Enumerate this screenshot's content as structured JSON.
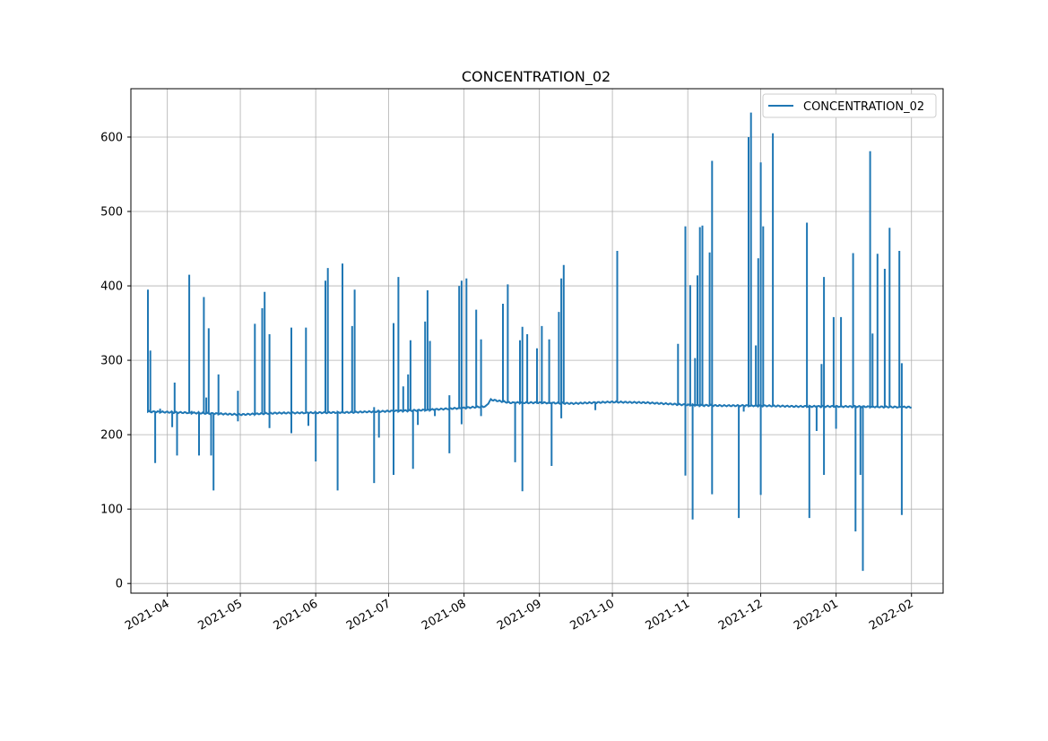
{
  "chart_data": {
    "type": "line",
    "title": "CONCENTRATION_02",
    "xlabel": "",
    "ylabel": "",
    "x_axis_type": "date",
    "xlim": [
      "2021-03-17",
      "2022-02-14"
    ],
    "ylim": [
      -13,
      665
    ],
    "x_ticks": [
      "2021-04",
      "2021-05",
      "2021-06",
      "2021-07",
      "2021-08",
      "2021-09",
      "2021-10",
      "2021-11",
      "2021-12",
      "2022-01",
      "2022-02"
    ],
    "y_ticks": [
      0,
      100,
      200,
      300,
      400,
      500,
      600
    ],
    "grid": true,
    "legend": {
      "position": "top-right",
      "entries": [
        "CONCENTRATION_02"
      ]
    },
    "colors": {
      "series": "#1f77b4"
    },
    "series": [
      {
        "name": "CONCENTRATION_02",
        "baseline": [
          [
            "2021-03-24",
            231
          ],
          [
            "2021-04-15",
            229
          ],
          [
            "2021-05-01",
            227
          ],
          [
            "2021-05-15",
            229
          ],
          [
            "2021-06-15",
            230
          ],
          [
            "2021-07-15",
            233
          ],
          [
            "2021-08-01",
            236
          ],
          [
            "2021-08-10",
            238
          ],
          [
            "2021-08-12",
            247
          ],
          [
            "2021-08-20",
            243
          ],
          [
            "2021-09-01",
            243
          ],
          [
            "2021-09-15",
            242
          ],
          [
            "2021-10-01",
            244
          ],
          [
            "2021-10-15",
            243
          ],
          [
            "2021-11-01",
            240
          ],
          [
            "2021-11-15",
            239
          ],
          [
            "2021-12-01",
            239
          ],
          [
            "2021-12-15",
            238
          ],
          [
            "2022-01-01",
            238
          ],
          [
            "2022-02-01",
            237
          ]
        ],
        "spikes": [
          [
            "2021-03-24",
            395
          ],
          [
            "2021-03-25",
            313
          ],
          [
            "2021-03-27",
            162
          ],
          [
            "2021-03-29",
            235
          ],
          [
            "2021-04-03",
            210
          ],
          [
            "2021-04-04",
            270
          ],
          [
            "2021-04-05",
            172
          ],
          [
            "2021-04-10",
            415
          ],
          [
            "2021-04-11",
            232
          ],
          [
            "2021-04-14",
            172
          ],
          [
            "2021-04-16",
            385
          ],
          [
            "2021-04-17",
            250
          ],
          [
            "2021-04-18",
            343
          ],
          [
            "2021-04-19",
            172
          ],
          [
            "2021-04-20",
            125
          ],
          [
            "2021-04-22",
            281
          ],
          [
            "2021-04-30",
            259
          ],
          [
            "2021-04-30",
            218
          ],
          [
            "2021-05-07",
            349
          ],
          [
            "2021-05-10",
            370
          ],
          [
            "2021-05-11",
            392
          ],
          [
            "2021-05-13",
            335
          ],
          [
            "2021-05-13",
            209
          ],
          [
            "2021-05-22",
            344
          ],
          [
            "2021-05-22",
            202
          ],
          [
            "2021-05-28",
            344
          ],
          [
            "2021-05-29",
            212
          ],
          [
            "2021-06-01",
            164
          ],
          [
            "2021-06-05",
            407
          ],
          [
            "2021-06-06",
            424
          ],
          [
            "2021-06-10",
            125
          ],
          [
            "2021-06-12",
            430
          ],
          [
            "2021-06-16",
            346
          ],
          [
            "2021-06-17",
            395
          ],
          [
            "2021-06-25",
            135
          ],
          [
            "2021-06-25",
            237
          ],
          [
            "2021-06-27",
            196
          ],
          [
            "2021-07-03",
            350
          ],
          [
            "2021-07-03",
            146
          ],
          [
            "2021-07-05",
            412
          ],
          [
            "2021-07-07",
            265
          ],
          [
            "2021-07-09",
            281
          ],
          [
            "2021-07-10",
            327
          ],
          [
            "2021-07-11",
            154
          ],
          [
            "2021-07-13",
            213
          ],
          [
            "2021-07-16",
            352
          ],
          [
            "2021-07-17",
            394
          ],
          [
            "2021-07-18",
            326
          ],
          [
            "2021-07-20",
            225
          ],
          [
            "2021-07-26",
            253
          ],
          [
            "2021-07-26",
            175
          ],
          [
            "2021-07-30",
            400
          ],
          [
            "2021-07-31",
            407
          ],
          [
            "2021-07-31",
            214
          ],
          [
            "2021-08-02",
            410
          ],
          [
            "2021-08-02",
            302
          ],
          [
            "2021-08-06",
            368
          ],
          [
            "2021-08-08",
            328
          ],
          [
            "2021-08-08",
            225
          ],
          [
            "2021-08-17",
            376
          ],
          [
            "2021-08-19",
            402
          ],
          [
            "2021-08-22",
            163
          ],
          [
            "2021-08-24",
            327
          ],
          [
            "2021-08-25",
            345
          ],
          [
            "2021-08-25",
            124
          ],
          [
            "2021-08-27",
            335
          ],
          [
            "2021-08-31",
            316
          ],
          [
            "2021-09-02",
            346
          ],
          [
            "2021-09-05",
            328
          ],
          [
            "2021-09-06",
            158
          ],
          [
            "2021-09-09",
            365
          ],
          [
            "2021-09-10",
            410
          ],
          [
            "2021-09-10",
            222
          ],
          [
            "2021-09-11",
            428
          ],
          [
            "2021-09-24",
            233
          ],
          [
            "2021-10-03",
            447
          ],
          [
            "2021-10-28",
            322
          ],
          [
            "2021-10-31",
            480
          ],
          [
            "2021-10-31",
            145
          ],
          [
            "2021-11-01",
            240
          ],
          [
            "2021-11-02",
            401
          ],
          [
            "2021-11-03",
            86
          ],
          [
            "2021-11-04",
            303
          ],
          [
            "2021-11-05",
            414
          ],
          [
            "2021-11-06",
            479
          ],
          [
            "2021-11-07",
            481
          ],
          [
            "2021-11-08",
            240
          ],
          [
            "2021-11-10",
            445
          ],
          [
            "2021-11-11",
            568
          ],
          [
            "2021-11-11",
            120
          ],
          [
            "2021-11-22",
            88
          ],
          [
            "2021-11-24",
            231
          ],
          [
            "2021-11-26",
            600
          ],
          [
            "2021-11-26",
            590
          ],
          [
            "2021-11-27",
            633
          ],
          [
            "2021-11-29",
            320
          ],
          [
            "2021-11-30",
            437
          ],
          [
            "2021-12-01",
            566
          ],
          [
            "2021-12-01",
            119
          ],
          [
            "2021-12-02",
            480
          ],
          [
            "2021-12-06",
            605
          ],
          [
            "2021-12-20",
            485
          ],
          [
            "2021-12-21",
            88
          ],
          [
            "2021-12-24",
            205
          ],
          [
            "2021-12-27",
            412
          ],
          [
            "2021-12-27",
            146
          ],
          [
            "2021-12-26",
            295
          ],
          [
            "2021-12-31",
            358
          ],
          [
            "2022-01-01",
            216
          ],
          [
            "2022-01-01",
            208
          ],
          [
            "2022-01-03",
            358
          ],
          [
            "2022-01-08",
            444
          ],
          [
            "2022-01-09",
            70
          ],
          [
            "2022-01-11",
            146
          ],
          [
            "2022-01-12",
            17
          ],
          [
            "2022-01-15",
            581
          ],
          [
            "2022-01-16",
            336
          ],
          [
            "2022-01-18",
            443
          ],
          [
            "2022-01-21",
            423
          ],
          [
            "2022-01-23",
            478
          ],
          [
            "2022-01-27",
            447
          ],
          [
            "2022-01-27",
            343
          ],
          [
            "2022-01-28",
            92
          ],
          [
            "2022-01-28",
            296
          ]
        ]
      }
    ]
  }
}
